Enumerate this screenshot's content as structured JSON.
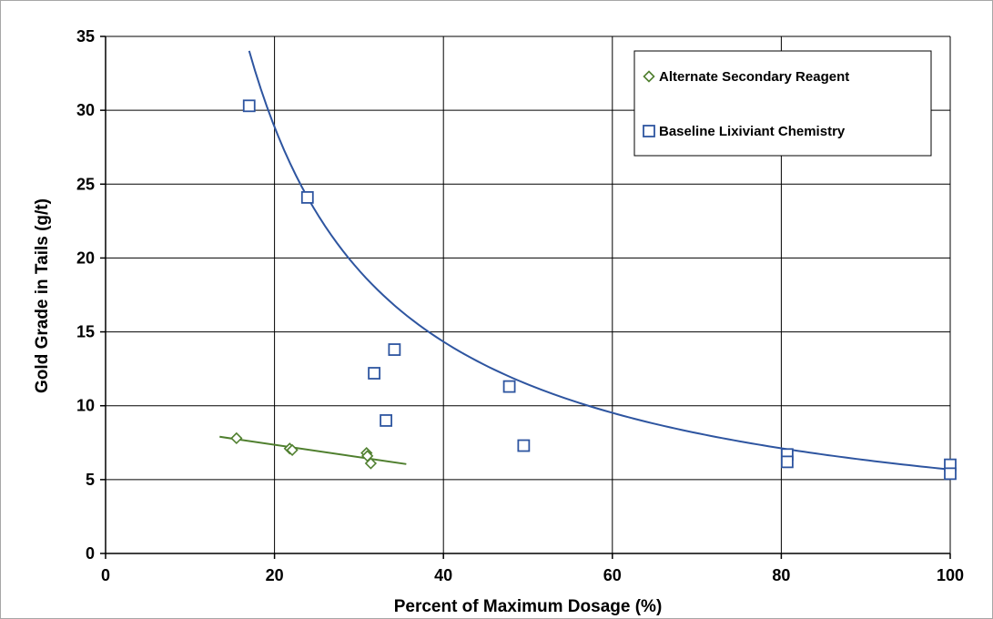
{
  "chart_data": {
    "type": "scatter",
    "title": "",
    "xlabel": "Percent of Maximum Dosage (%)",
    "ylabel": "Gold Grade  in Tails (g/t)",
    "xlim": [
      0,
      100
    ],
    "ylim": [
      0,
      35
    ],
    "x_ticks": [
      0,
      20,
      40,
      60,
      80,
      100
    ],
    "y_ticks": [
      0,
      5,
      10,
      15,
      20,
      25,
      30,
      35
    ],
    "grid": true,
    "legend_position": "top-right",
    "series": [
      {
        "name": "Alternate Secondary Reagent",
        "marker": "diamond",
        "color": "#4f7f2e",
        "points": [
          {
            "x": 15.5,
            "y": 7.8
          },
          {
            "x": 21.8,
            "y": 7.1
          },
          {
            "x": 22.1,
            "y": 7.0
          },
          {
            "x": 30.9,
            "y": 6.8
          },
          {
            "x": 31.0,
            "y": 6.6
          },
          {
            "x": 31.4,
            "y": 6.1
          }
        ],
        "trendline": {
          "type": "linear",
          "x_range": [
            13.5,
            35.6
          ],
          "y_range": [
            7.9,
            6.05
          ]
        }
      },
      {
        "name": "Baseline Lixiviant Chemistry",
        "marker": "square",
        "color": "#2e55a0",
        "points": [
          {
            "x": 17.0,
            "y": 30.3
          },
          {
            "x": 23.9,
            "y": 24.1
          },
          {
            "x": 31.8,
            "y": 12.2
          },
          {
            "x": 33.2,
            "y": 9.0
          },
          {
            "x": 34.2,
            "y": 13.8
          },
          {
            "x": 47.8,
            "y": 11.3
          },
          {
            "x": 49.5,
            "y": 7.3
          },
          {
            "x": 80.7,
            "y": 6.7
          },
          {
            "x": 80.7,
            "y": 6.2
          },
          {
            "x": 100.0,
            "y": 6.0
          },
          {
            "x": 100.0,
            "y": 5.4
          }
        ],
        "trendline": {
          "type": "power",
          "a": 595,
          "b": -1.01,
          "x_range": [
            17.0,
            100.0
          ]
        }
      }
    ]
  }
}
